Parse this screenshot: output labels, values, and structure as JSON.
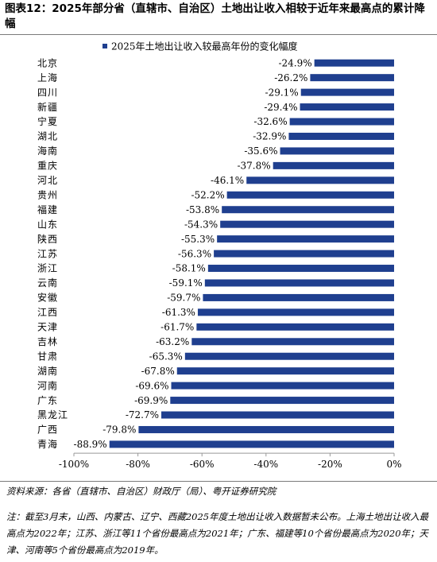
{
  "title": "图表12：2025年部分省（直辖市、自治区）土地出让收入相较于近年来最高点的累计降幅",
  "source": "资料来源：各省（直辖市、自治区）财政厅（局）、粤开证券研究院",
  "note": "注：截至3月末，山西、内蒙古、辽宁、西藏2025年度土地出让收入数据暂未公布。上海土地出让收入最高点为2022年；江苏、浙江等11个省份最高点为2021年；广东、福建等10个省份最高点为2020年；天津、河南等5个省份最高点为2019年。",
  "colors": {
    "bar": "#1f3f8f",
    "axis": "#999999"
  },
  "chart_data": {
    "type": "bar",
    "orientation": "horizontal",
    "legend": "2025年土地出让收入较最高年份的变化幅度",
    "legend_position": "top",
    "grid": false,
    "categories": [
      "北京",
      "上海",
      "四川",
      "新疆",
      "宁夏",
      "湖北",
      "海南",
      "重庆",
      "河北",
      "贵州",
      "福建",
      "山东",
      "陕西",
      "江苏",
      "浙江",
      "云南",
      "安徽",
      "江西",
      "天津",
      "吉林",
      "甘肃",
      "湖南",
      "河南",
      "广东",
      "黑龙江",
      "广西",
      "青海"
    ],
    "values": [
      -24.9,
      -26.2,
      -29.1,
      -29.4,
      -32.6,
      -32.9,
      -35.6,
      -37.8,
      -46.1,
      -52.2,
      -53.8,
      -54.3,
      -55.3,
      -56.3,
      -58.1,
      -59.1,
      -59.7,
      -61.3,
      -61.7,
      -63.2,
      -65.3,
      -67.8,
      -69.6,
      -69.9,
      -72.7,
      -79.8,
      -88.9
    ],
    "data_labels": [
      "-24.9%",
      "-26.2%",
      "-29.1%",
      "-29.4%",
      "-32.6%",
      "-32.9%",
      "-35.6%",
      "-37.8%",
      "-46.1%",
      "-52.2%",
      "-53.8%",
      "-54.3%",
      "-55.3%",
      "-56.3%",
      "-58.1%",
      "-59.1%",
      "-59.7%",
      "-61.3%",
      "-61.7%",
      "-63.2%",
      "-65.3%",
      "-67.8%",
      "-69.6%",
      "-69.9%",
      "-72.7%",
      "-79.8%",
      "-88.9%"
    ],
    "xlim": [
      -100,
      0
    ],
    "xticks": [
      -100,
      -80,
      -60,
      -40,
      -20,
      0
    ],
    "xtick_labels": [
      "-100%",
      "-80%",
      "-60%",
      "-40%",
      "-20%",
      "0%"
    ]
  }
}
